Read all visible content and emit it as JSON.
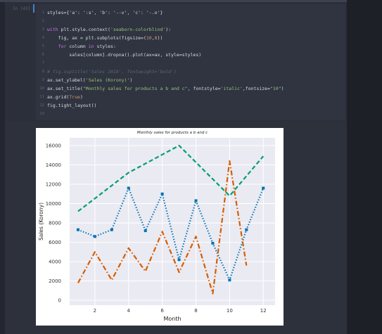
{
  "notebook": {
    "prompt": "In [43]:",
    "code_lines": [
      {
        "n": "1",
        "parts": [
          [
            "styles={'a': ':s', 'b': '--v', 'c': '-.o'}",
            ""
          ]
        ]
      },
      {
        "n": "2",
        "parts": []
      },
      {
        "n": "3",
        "parts": [
          [
            "with",
            "k"
          ],
          [
            " plt.style.context(",
            ""
          ],
          [
            "'seaborn-colorblind'",
            "s"
          ],
          [
            "):",
            ""
          ]
        ]
      },
      {
        "n": "4",
        "parts": [
          [
            "    fig, ax = plt.subplots(figsize=(",
            ""
          ],
          [
            "10",
            "n"
          ],
          [
            ",",
            ""
          ],
          [
            "8",
            "n"
          ],
          [
            "))",
            ""
          ]
        ]
      },
      {
        "n": "5",
        "parts": [
          [
            "    ",
            ""
          ],
          [
            "for",
            "k"
          ],
          [
            " column ",
            ""
          ],
          [
            "in",
            "k"
          ],
          [
            " styles:",
            ""
          ]
        ]
      },
      {
        "n": "6",
        "parts": [
          [
            "        sales[column].dropna().plot(ax=ax, style=styles)",
            ""
          ]
        ]
      },
      {
        "n": "7",
        "parts": []
      },
      {
        "n": "8",
        "parts": [
          [
            "# fig.suptitle('Sales 2018', fontweight='bold')",
            "c"
          ]
        ]
      },
      {
        "n": "9",
        "parts": [
          [
            "ax.set_ylabel(",
            ""
          ],
          [
            "'Sales (Korony)'",
            "s"
          ],
          [
            ")",
            ""
          ]
        ]
      },
      {
        "n": "10",
        "parts": [
          [
            "ax.set_title(",
            ""
          ],
          [
            "\"Monthly sales for products a b and c\"",
            "s"
          ],
          [
            ", fontstyle=",
            ""
          ],
          [
            "'italic'",
            "s"
          ],
          [
            ",fontsize=",
            ""
          ],
          [
            "\"10\"",
            "s"
          ],
          [
            ")",
            ""
          ]
        ]
      },
      {
        "n": "11",
        "parts": [
          [
            "ax.grid(",
            ""
          ],
          [
            "True",
            "n"
          ],
          [
            ")",
            ""
          ]
        ]
      },
      {
        "n": "12",
        "parts": [
          [
            "fig.tight_layout()",
            ""
          ]
        ]
      },
      {
        "n": "13",
        "parts": []
      }
    ]
  },
  "chart_data": {
    "type": "line",
    "title": "Monthly sales for products a b and c",
    "xlabel": "Month",
    "ylabel": "Sales (Korony)",
    "xlim": [
      0.5,
      12.7
    ],
    "ylim": [
      -500,
      16800
    ],
    "xticks": [
      2,
      4,
      6,
      8,
      10,
      12
    ],
    "yticks": [
      0,
      2000,
      4000,
      6000,
      8000,
      10000,
      12000,
      14000,
      16000
    ],
    "grid": true,
    "series": [
      {
        "style": "dotted-square",
        "color": "#0072b2",
        "x": [
          1,
          2,
          3,
          4,
          5,
          6,
          7,
          8,
          9,
          10,
          11,
          12
        ],
        "values": [
          7300,
          6600,
          7300,
          11600,
          7200,
          11000,
          4200,
          10300,
          5900,
          2100,
          7300,
          11600
        ]
      },
      {
        "style": "dashed",
        "color": "#009e73",
        "x": [
          1,
          4,
          7,
          10,
          12
        ],
        "values": [
          9200,
          13200,
          16000,
          10800,
          14900
        ]
      },
      {
        "style": "dashdot",
        "color": "#d55e00",
        "x": [
          1,
          2,
          3,
          4,
          5,
          6,
          7,
          8,
          9,
          10,
          11
        ],
        "values": [
          1800,
          5000,
          2100,
          5400,
          3000,
          7100,
          2900,
          6600,
          700,
          14400,
          3600
        ]
      }
    ]
  }
}
